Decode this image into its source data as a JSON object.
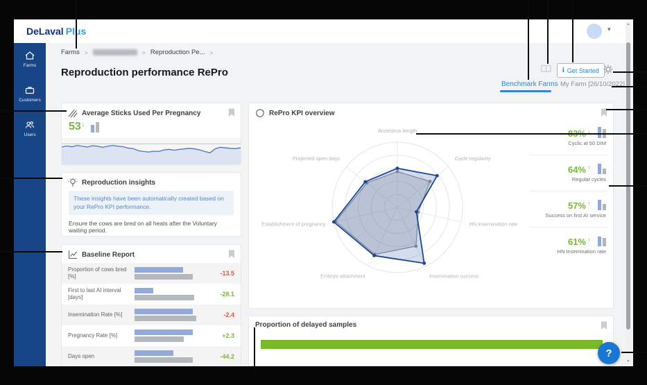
{
  "topbar": {
    "logo_primary": "DeLaval",
    "logo_plus": "Plus"
  },
  "sidebar": {
    "items": [
      {
        "label": "Farms"
      },
      {
        "label": "Customers"
      },
      {
        "label": "Users"
      }
    ]
  },
  "breadcrumb": {
    "first": "Farms",
    "redacted": true,
    "third": "Reproduction Pe...",
    "separator": ">"
  },
  "page": {
    "title": "Reproduction performance RePro"
  },
  "toolbar": {
    "get_started_label": "Get Started",
    "info_glyph": "i"
  },
  "tabs": [
    {
      "label": "Benchmark Farms",
      "active": true
    },
    {
      "label": "My Farm [26/10/2022]",
      "active": false
    }
  ],
  "cards": {
    "sticks": {
      "title": "Average Sticks Used Per Pregnancy",
      "value": "53",
      "trend": "down",
      "bars": [
        11,
        15
      ]
    },
    "insights": {
      "title": "Reproduction insights",
      "box_text": "These insights have been automatically created based on your RePro KPI performance.",
      "body_text": "Ensure the cows are bred on all heats after the Voluntary waiting period."
    },
    "baseline": {
      "title": "Baseline Report"
    },
    "kpi_overview": {
      "title": "RePro KPI overview"
    },
    "delayed": {
      "title": "Proportion of delayed samples"
    }
  },
  "kpis": [
    {
      "value": "83%",
      "trend": "down",
      "bars": [
        16,
        13
      ],
      "label": "Cyclic at 50 DIM"
    },
    {
      "value": "64%",
      "trend": "up",
      "bars": [
        15,
        8
      ],
      "label": "Regular cycles"
    },
    {
      "value": "57%",
      "trend": "up",
      "bars": [
        15,
        9
      ],
      "label": "Success on first AI service"
    },
    {
      "value": "61%",
      "trend": "up",
      "bars": [
        14,
        12
      ],
      "label": "HN Insemination rate"
    }
  ],
  "help": {
    "label": "?"
  },
  "colors": {
    "green": "#7cb342",
    "red": "#e8553d",
    "bar_blue": "#93a9db",
    "bar_gray": "#b4b7bc",
    "radar_blue": "#1d4695",
    "radar_gray": "#8d939d",
    "delayed_green": "#78b928",
    "tab_blue": "#2e86d3"
  },
  "chart_data": [
    {
      "name": "repro-kpi-radar",
      "type": "radar",
      "title": "RePro KPI overview",
      "axes": [
        "Anoestrus length",
        "Cycle regularity",
        "HN insemination rate",
        "Insemination success",
        "Embryo attachment",
        "Establishment of pregnancy",
        "Projected open days"
      ],
      "scale": [
        0,
        1
      ],
      "rings": 5,
      "series": [
        {
          "name": "Benchmark",
          "color": "#8d939d",
          "fill": "rgba(130,140,155,0.28)",
          "values": [
            0.55,
            0.64,
            0.33,
            0.66,
            0.8,
            0.97,
            0.6
          ]
        },
        {
          "name": "My Farm",
          "color": "#1d4695",
          "fill": "rgba(47,84,160,0.20)",
          "values": [
            0.6,
            0.78,
            0.3,
            0.95,
            0.82,
            1.0,
            0.63
          ]
        }
      ],
      "legend": "none"
    },
    {
      "name": "avg-sticks-spark",
      "type": "area",
      "title": "Average Sticks Used Per Pregnancy",
      "ylim": [
        0,
        1
      ],
      "benchmark_level": 0.78,
      "values": [
        0.66,
        0.7,
        0.67,
        0.72,
        0.69,
        0.66,
        0.71,
        0.69,
        0.65,
        0.69,
        0.72,
        0.69,
        0.67,
        0.62,
        0.6,
        0.52,
        0.49,
        0.47,
        0.5,
        0.49,
        0.55,
        0.57,
        0.54,
        0.57,
        0.59,
        0.61,
        0.59,
        0.55,
        0.49,
        0.44,
        0.59,
        0.65,
        0.63,
        0.61,
        0.6,
        0.63
      ]
    },
    {
      "name": "baseline-report",
      "type": "bar",
      "title": "Baseline Report",
      "rows": [
        {
          "label": "Proportion of cows bred [%]",
          "farm_pct": 73,
          "benchmark_pct": 88,
          "delta": "-13.5",
          "delta_color": "#e8553d"
        },
        {
          "label": "First to last AI interval [days]",
          "farm_pct": 28,
          "benchmark_pct": 90,
          "delta": "-28.1",
          "delta_color": "#7cb342"
        },
        {
          "label": "Insemination Rate [%]",
          "farm_pct": 88,
          "benchmark_pct": 93,
          "delta": "-2.4",
          "delta_color": "#e8553d"
        },
        {
          "label": "Pregnancy Rate [%]",
          "farm_pct": 88,
          "benchmark_pct": 74,
          "delta": "+2.3",
          "delta_color": "#7cb342"
        },
        {
          "label": "Days open",
          "farm_pct": 58,
          "benchmark_pct": 88,
          "delta": "-44.2",
          "delta_color": "#7cb342"
        }
      ]
    },
    {
      "name": "delayed-samples",
      "type": "bar",
      "title": "Proportion of delayed samples",
      "value_pct": 100,
      "color": "#78b928"
    }
  ]
}
